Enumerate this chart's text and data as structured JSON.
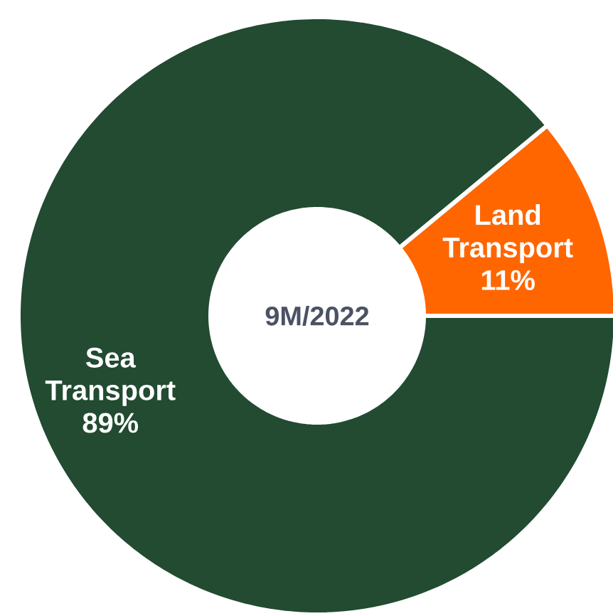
{
  "chart_data": {
    "type": "donut",
    "title": "9M/2022",
    "categories": [
      "Land Transport",
      "Sea Transport"
    ],
    "values": [
      11,
      89
    ],
    "colors": [
      "#ff6600",
      "#224b31"
    ],
    "value_labels": [
      "11%",
      "89%"
    ]
  }
}
